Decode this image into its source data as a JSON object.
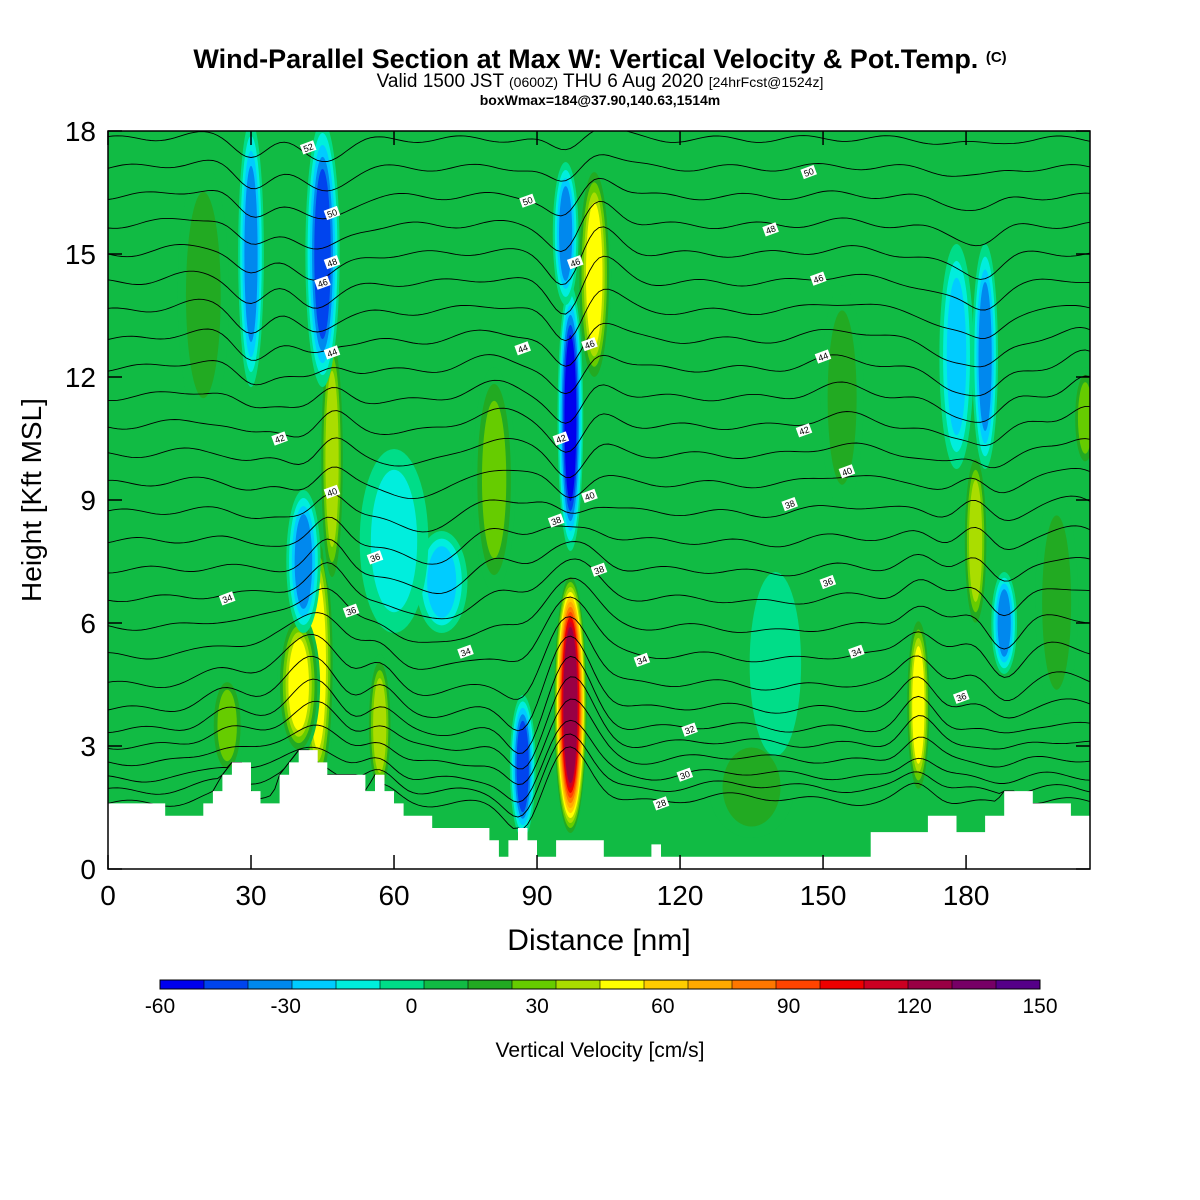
{
  "header": {
    "title": "Wind-Parallel Section at Max W: Vertical Velocity & Pot.Temp.",
    "title_mark": "(C)",
    "valid_prefix": "Valid 1500 JST",
    "valid_utc": "(0600Z)",
    "valid_date": "THU 6 Aug 2020",
    "forecast": "[24hrFcst@1524z]",
    "box_info": "boxWmax=184@37.90,140.63,1514m"
  },
  "chart_data": {
    "type": "heatmap",
    "title": "Wind-Parallel Section at Max W: Vertical Velocity & Pot.Temp.",
    "xlabel": "Distance [nm]",
    "ylabel": "Height [Kft MSL]",
    "xlim": [
      0,
      206
    ],
    "ylim": [
      0,
      18
    ],
    "x_ticks": [
      0,
      30,
      60,
      90,
      120,
      150,
      180
    ],
    "y_ticks": [
      0,
      3,
      6,
      9,
      12,
      15,
      18
    ],
    "colorbar": {
      "label": "Vertical Velocity [cm/s]",
      "min": -60,
      "max": 150,
      "step": 10,
      "tick_values": [
        -60,
        -30,
        0,
        30,
        60,
        90,
        120,
        150
      ],
      "colors": [
        "#0000ee",
        "#0044ee",
        "#0088ee",
        "#00ccff",
        "#00eedd",
        "#00dd88",
        "#11bb44",
        "#22aa22",
        "#66cc00",
        "#aadd00",
        "#ffff00",
        "#ffcc00",
        "#ffaa00",
        "#ff7700",
        "#ff4400",
        "#ee0000",
        "#cc0022",
        "#990044",
        "#770066",
        "#550088"
      ]
    },
    "background_value": 0,
    "vertical_velocity_features": [
      {
        "x": 44,
        "x_width": 4,
        "y_bottom": 2,
        "y_top": 8,
        "value": 50
      },
      {
        "x": 40,
        "x_width": 5,
        "y_bottom": 3,
        "y_top": 6,
        "value": 50
      },
      {
        "x": 57,
        "x_width": 3,
        "y_bottom": 2,
        "y_top": 5,
        "value": 40
      },
      {
        "x": 25,
        "x_width": 4,
        "y_bottom": 2.5,
        "y_top": 4.5,
        "value": 30
      },
      {
        "x": 47,
        "x_width": 3,
        "y_bottom": 7,
        "y_top": 13,
        "value": 40
      },
      {
        "x": 81,
        "x_width": 5,
        "y_bottom": 7,
        "y_top": 12,
        "value": 30
      },
      {
        "x": 97,
        "x_width": 4,
        "y_bottom": 1,
        "y_top": 7,
        "value": 120
      },
      {
        "x": 102,
        "x_width": 4,
        "y_bottom": 12,
        "y_top": 17,
        "value": 50
      },
      {
        "x": 170,
        "x_width": 3,
        "y_bottom": 2,
        "y_top": 6,
        "value": 50
      },
      {
        "x": 182,
        "x_width": 3,
        "y_bottom": 6,
        "y_top": 10,
        "value": 40
      },
      {
        "x": 205,
        "x_width": 3,
        "y_bottom": 10,
        "y_top": 12,
        "value": 30
      },
      {
        "x": 154,
        "x_width": 5,
        "y_bottom": 9,
        "y_top": 14,
        "value": 20
      },
      {
        "x": 199,
        "x_width": 5,
        "y_bottom": 4,
        "y_top": 9,
        "value": 20
      },
      {
        "x": 20,
        "x_width": 6,
        "y_bottom": 11,
        "y_top": 17,
        "value": 15
      },
      {
        "x": 135,
        "x_width": 10,
        "y_bottom": 1,
        "y_top": 3,
        "value": 15
      },
      {
        "x": 30,
        "x_width": 3,
        "y_bottom": 12,
        "y_top": 18,
        "value": -40
      },
      {
        "x": 45,
        "x_width": 4,
        "y_bottom": 12,
        "y_top": 18,
        "value": -50
      },
      {
        "x": 41,
        "x_width": 4,
        "y_bottom": 6,
        "y_top": 9,
        "value": -40
      },
      {
        "x": 70,
        "x_width": 6,
        "y_bottom": 6,
        "y_top": 8,
        "value": -30
      },
      {
        "x": 87,
        "x_width": 3,
        "y_bottom": 1,
        "y_top": 4,
        "value": -50
      },
      {
        "x": 97,
        "x_width": 3,
        "y_bottom": 8,
        "y_top": 14,
        "value": -60
      },
      {
        "x": 96,
        "x_width": 3,
        "y_bottom": 14,
        "y_top": 17,
        "value": -40
      },
      {
        "x": 184,
        "x_width": 3,
        "y_bottom": 10,
        "y_top": 15,
        "value": -40
      },
      {
        "x": 178,
        "x_width": 4,
        "y_bottom": 10,
        "y_top": 15,
        "value": -30
      },
      {
        "x": 188,
        "x_width": 3,
        "y_bottom": 5,
        "y_top": 7,
        "value": -40
      },
      {
        "x": 60,
        "x_width": 8,
        "y_bottom": 6,
        "y_top": 10,
        "value": -15
      },
      {
        "x": 140,
        "x_width": 6,
        "y_bottom": 3,
        "y_top": 7,
        "value": -10
      }
    ],
    "terrain": {
      "x": [
        0,
        6,
        12,
        18,
        20,
        22,
        24,
        26,
        28,
        30,
        32,
        34,
        36,
        38,
        40,
        42,
        44,
        46,
        48,
        52,
        54,
        56,
        58,
        60,
        62,
        64,
        68,
        72,
        74,
        76,
        80,
        82,
        84,
        86,
        88,
        90,
        92,
        94,
        96,
        98,
        100,
        104,
        108,
        112,
        114,
        116,
        118,
        122,
        126,
        130,
        136,
        142,
        148,
        154,
        158,
        160,
        164,
        170,
        172,
        176,
        178,
        182,
        184,
        188,
        190,
        194,
        198,
        202,
        206
      ],
      "height": [
        1.6,
        1.6,
        1.3,
        1.3,
        1.6,
        1.9,
        2.3,
        2.6,
        2.6,
        1.9,
        1.6,
        1.6,
        2.3,
        2.6,
        2.9,
        2.9,
        2.6,
        2.3,
        2.3,
        2.3,
        1.9,
        2.3,
        1.9,
        1.6,
        1.3,
        1.3,
        1.0,
        1.0,
        1.0,
        1.0,
        0.7,
        0.3,
        0.7,
        1.0,
        0.7,
        0.3,
        0.3,
        0.7,
        0.7,
        0.7,
        0.7,
        0.3,
        0.3,
        0.3,
        0.6,
        0.3,
        0.3,
        0.3,
        0.3,
        0.3,
        0.3,
        0.3,
        0.3,
        0.3,
        0.3,
        0.9,
        0.9,
        0.9,
        1.3,
        1.3,
        0.9,
        0.9,
        1.3,
        1.9,
        1.9,
        1.6,
        1.6,
        1.3,
        1.3
      ]
    },
    "potential_temperature": {
      "contour_interval": 1,
      "levels": [
        26,
        27,
        28,
        29,
        30,
        31,
        32,
        33,
        34,
        35,
        36,
        37,
        38,
        39,
        40,
        41,
        42,
        43,
        44,
        45,
        46,
        47,
        48,
        49,
        50,
        51,
        52
      ],
      "reference_heights": [
        1.6,
        1.9,
        2.2,
        2.6,
        3.0,
        3.4,
        3.9,
        4.5,
        5.2,
        5.9,
        6.6,
        7.3,
        8.0,
        8.7,
        9.4,
        10.1,
        10.8,
        11.5,
        12.2,
        12.9,
        13.6,
        14.3,
        15.0,
        15.7,
        16.4,
        17.1,
        17.8
      ],
      "labels": [
        {
          "text": "52",
          "x": 42,
          "y": 17.6
        },
        {
          "text": "50",
          "x": 47,
          "y": 16.0
        },
        {
          "text": "48",
          "x": 47,
          "y": 14.8
        },
        {
          "text": "46",
          "x": 45,
          "y": 14.3
        },
        {
          "text": "44",
          "x": 47,
          "y": 12.6
        },
        {
          "text": "42",
          "x": 36,
          "y": 10.5
        },
        {
          "text": "40",
          "x": 47,
          "y": 9.2
        },
        {
          "text": "36",
          "x": 56,
          "y": 7.6
        },
        {
          "text": "34",
          "x": 25,
          "y": 6.6
        },
        {
          "text": "36",
          "x": 51,
          "y": 6.3
        },
        {
          "text": "50",
          "x": 88,
          "y": 16.3
        },
        {
          "text": "46",
          "x": 98,
          "y": 14.8
        },
        {
          "text": "44",
          "x": 87,
          "y": 12.7
        },
        {
          "text": "46",
          "x": 101,
          "y": 12.8
        },
        {
          "text": "42",
          "x": 95,
          "y": 10.5
        },
        {
          "text": "40",
          "x": 101,
          "y": 9.1
        },
        {
          "text": "38",
          "x": 94,
          "y": 8.5
        },
        {
          "text": "38",
          "x": 103,
          "y": 7.3
        },
        {
          "text": "34",
          "x": 75,
          "y": 5.3
        },
        {
          "text": "34",
          "x": 112,
          "y": 5.1
        },
        {
          "text": "32",
          "x": 122,
          "y": 3.4
        },
        {
          "text": "30",
          "x": 121,
          "y": 2.3
        },
        {
          "text": "28",
          "x": 116,
          "y": 1.6
        },
        {
          "text": "50",
          "x": 147,
          "y": 17.0
        },
        {
          "text": "48",
          "x": 139,
          "y": 15.6
        },
        {
          "text": "46",
          "x": 149,
          "y": 14.4
        },
        {
          "text": "44",
          "x": 150,
          "y": 12.5
        },
        {
          "text": "42",
          "x": 146,
          "y": 10.7
        },
        {
          "text": "40",
          "x": 155,
          "y": 9.7
        },
        {
          "text": "38",
          "x": 143,
          "y": 8.9
        },
        {
          "text": "36",
          "x": 151,
          "y": 7.0
        },
        {
          "text": "34",
          "x": 157,
          "y": 5.3
        },
        {
          "text": "36",
          "x": 179,
          "y": 4.2
        }
      ]
    }
  }
}
